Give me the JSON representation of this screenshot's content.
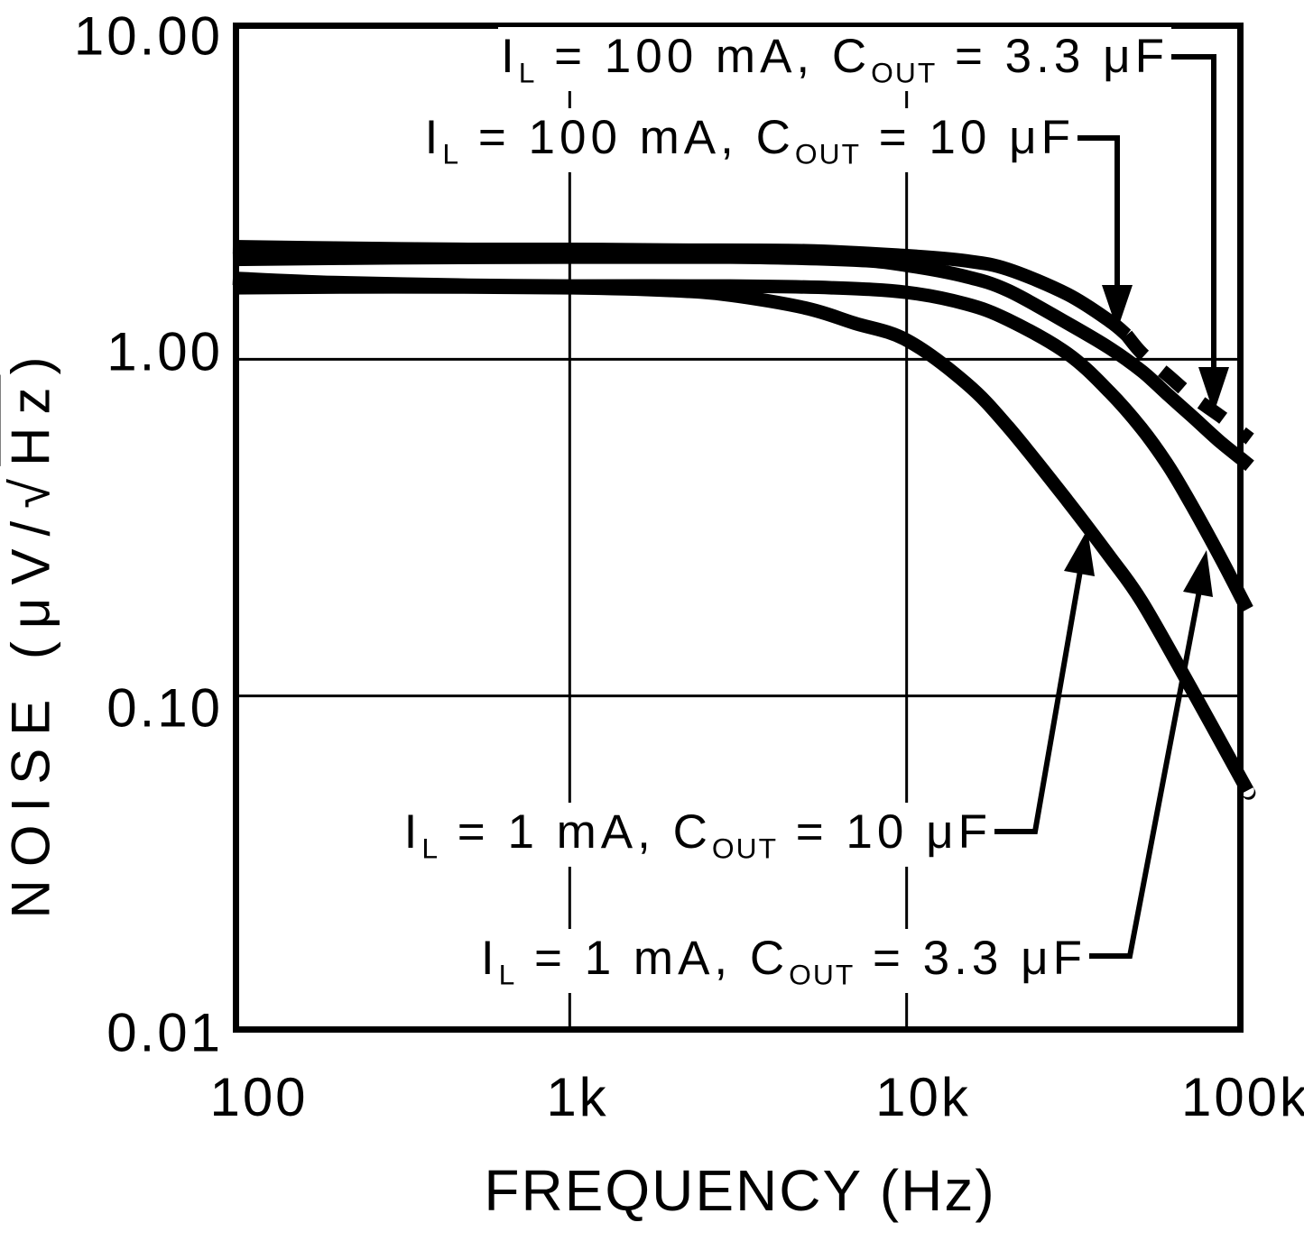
{
  "chart_data": {
    "type": "line",
    "title": "",
    "xlabel": "FREQUENCY (Hz)",
    "ylabel": "NOISE (μV/√Hz)",
    "x_scale": "log",
    "y_scale": "log",
    "xlim": [
      100,
      100000
    ],
    "ylim": [
      0.01,
      10
    ],
    "x_ticks": [
      "100",
      "1k",
      "10k",
      "100k"
    ],
    "y_ticks": [
      "10.00",
      "1.00",
      "0.10",
      "0.01"
    ],
    "x_gridlines_hz": [
      1000,
      10000
    ],
    "y_gridlines_uv": [
      1.0,
      0.1
    ],
    "grid": "on",
    "legend": "inline-labels-with-arrows",
    "line_color": "#000000",
    "background_color": "#ffffff",
    "series": [
      {
        "name": "IL = 100 mA, COUT = 3.3 μF",
        "style": "dashed-tail",
        "dash_from_hz": 45000,
        "points": [
          [
            100,
            2.16
          ],
          [
            200,
            2.14
          ],
          [
            500,
            2.12
          ],
          [
            1000,
            2.12
          ],
          [
            2000,
            2.11
          ],
          [
            5000,
            2.1
          ],
          [
            10000,
            2.03
          ],
          [
            15000,
            1.96
          ],
          [
            20000,
            1.85
          ],
          [
            30000,
            1.56
          ],
          [
            40000,
            1.3
          ],
          [
            45000,
            1.18
          ],
          [
            50000,
            1.04
          ],
          [
            60000,
            0.89
          ],
          [
            70000,
            0.78
          ],
          [
            85000,
            0.68
          ],
          [
            100000,
            0.6
          ]
        ]
      },
      {
        "name": "IL = 100 mA, COUT = 10 μF",
        "style": "solid",
        "points": [
          [
            100,
            1.98
          ],
          [
            300,
            2.0
          ],
          [
            1000,
            2.01
          ],
          [
            3000,
            2.01
          ],
          [
            7000,
            1.97
          ],
          [
            10000,
            1.9
          ],
          [
            15000,
            1.76
          ],
          [
            20000,
            1.6
          ],
          [
            30000,
            1.28
          ],
          [
            40000,
            1.08
          ],
          [
            50000,
            0.92
          ],
          [
            60000,
            0.78
          ],
          [
            70000,
            0.68
          ],
          [
            85000,
            0.57
          ],
          [
            100000,
            0.5
          ]
        ]
      },
      {
        "name": "IL = 1 mA, COUT = 3.3 μF",
        "style": "solid",
        "points": [
          [
            100,
            1.74
          ],
          [
            200,
            1.69
          ],
          [
            500,
            1.66
          ],
          [
            1000,
            1.65
          ],
          [
            3000,
            1.65
          ],
          [
            6000,
            1.63
          ],
          [
            10000,
            1.58
          ],
          [
            15000,
            1.46
          ],
          [
            20000,
            1.31
          ],
          [
            30000,
            1.04
          ],
          [
            40000,
            0.8
          ],
          [
            50000,
            0.62
          ],
          [
            60000,
            0.48
          ],
          [
            70000,
            0.37
          ],
          [
            85000,
            0.26
          ],
          [
            100000,
            0.19
          ]
        ]
      },
      {
        "name": "IL = 1 mA, COUT = 10 μF",
        "style": "solid",
        "points": [
          [
            100,
            1.63
          ],
          [
            300,
            1.64
          ],
          [
            1000,
            1.63
          ],
          [
            2000,
            1.6
          ],
          [
            3000,
            1.55
          ],
          [
            5000,
            1.42
          ],
          [
            7000,
            1.28
          ],
          [
            10000,
            1.14
          ],
          [
            15000,
            0.85
          ],
          [
            20000,
            0.63
          ],
          [
            30000,
            0.38
          ],
          [
            40000,
            0.26
          ],
          [
            50000,
            0.19
          ],
          [
            70000,
            0.105
          ],
          [
            100000,
            0.055
          ]
        ]
      }
    ]
  },
  "curve_labels": [
    {
      "i": "I",
      "i_sub": "L",
      "mid": " = 100 mA, C",
      "c_sub": "OUT",
      "tail": " = 3.3 μF"
    },
    {
      "i": "I",
      "i_sub": "L",
      "mid": " = 100 mA, C",
      "c_sub": "OUT",
      "tail": " = 10 μF"
    },
    {
      "i": "I",
      "i_sub": "L",
      "mid": " = 1 mA, C",
      "c_sub": "OUT",
      "tail": " = 10 μF"
    },
    {
      "i": "I",
      "i_sub": "L",
      "mid": " = 1 mA, C",
      "c_sub": "OUT",
      "tail": " = 3.3 μF"
    }
  ],
  "y_axis_label": {
    "prefix": "NOISE (μV/",
    "radical": "√",
    "radicand": "Hz",
    "suffix": ")"
  },
  "x_axis_label": "FREQUENCY (Hz)"
}
